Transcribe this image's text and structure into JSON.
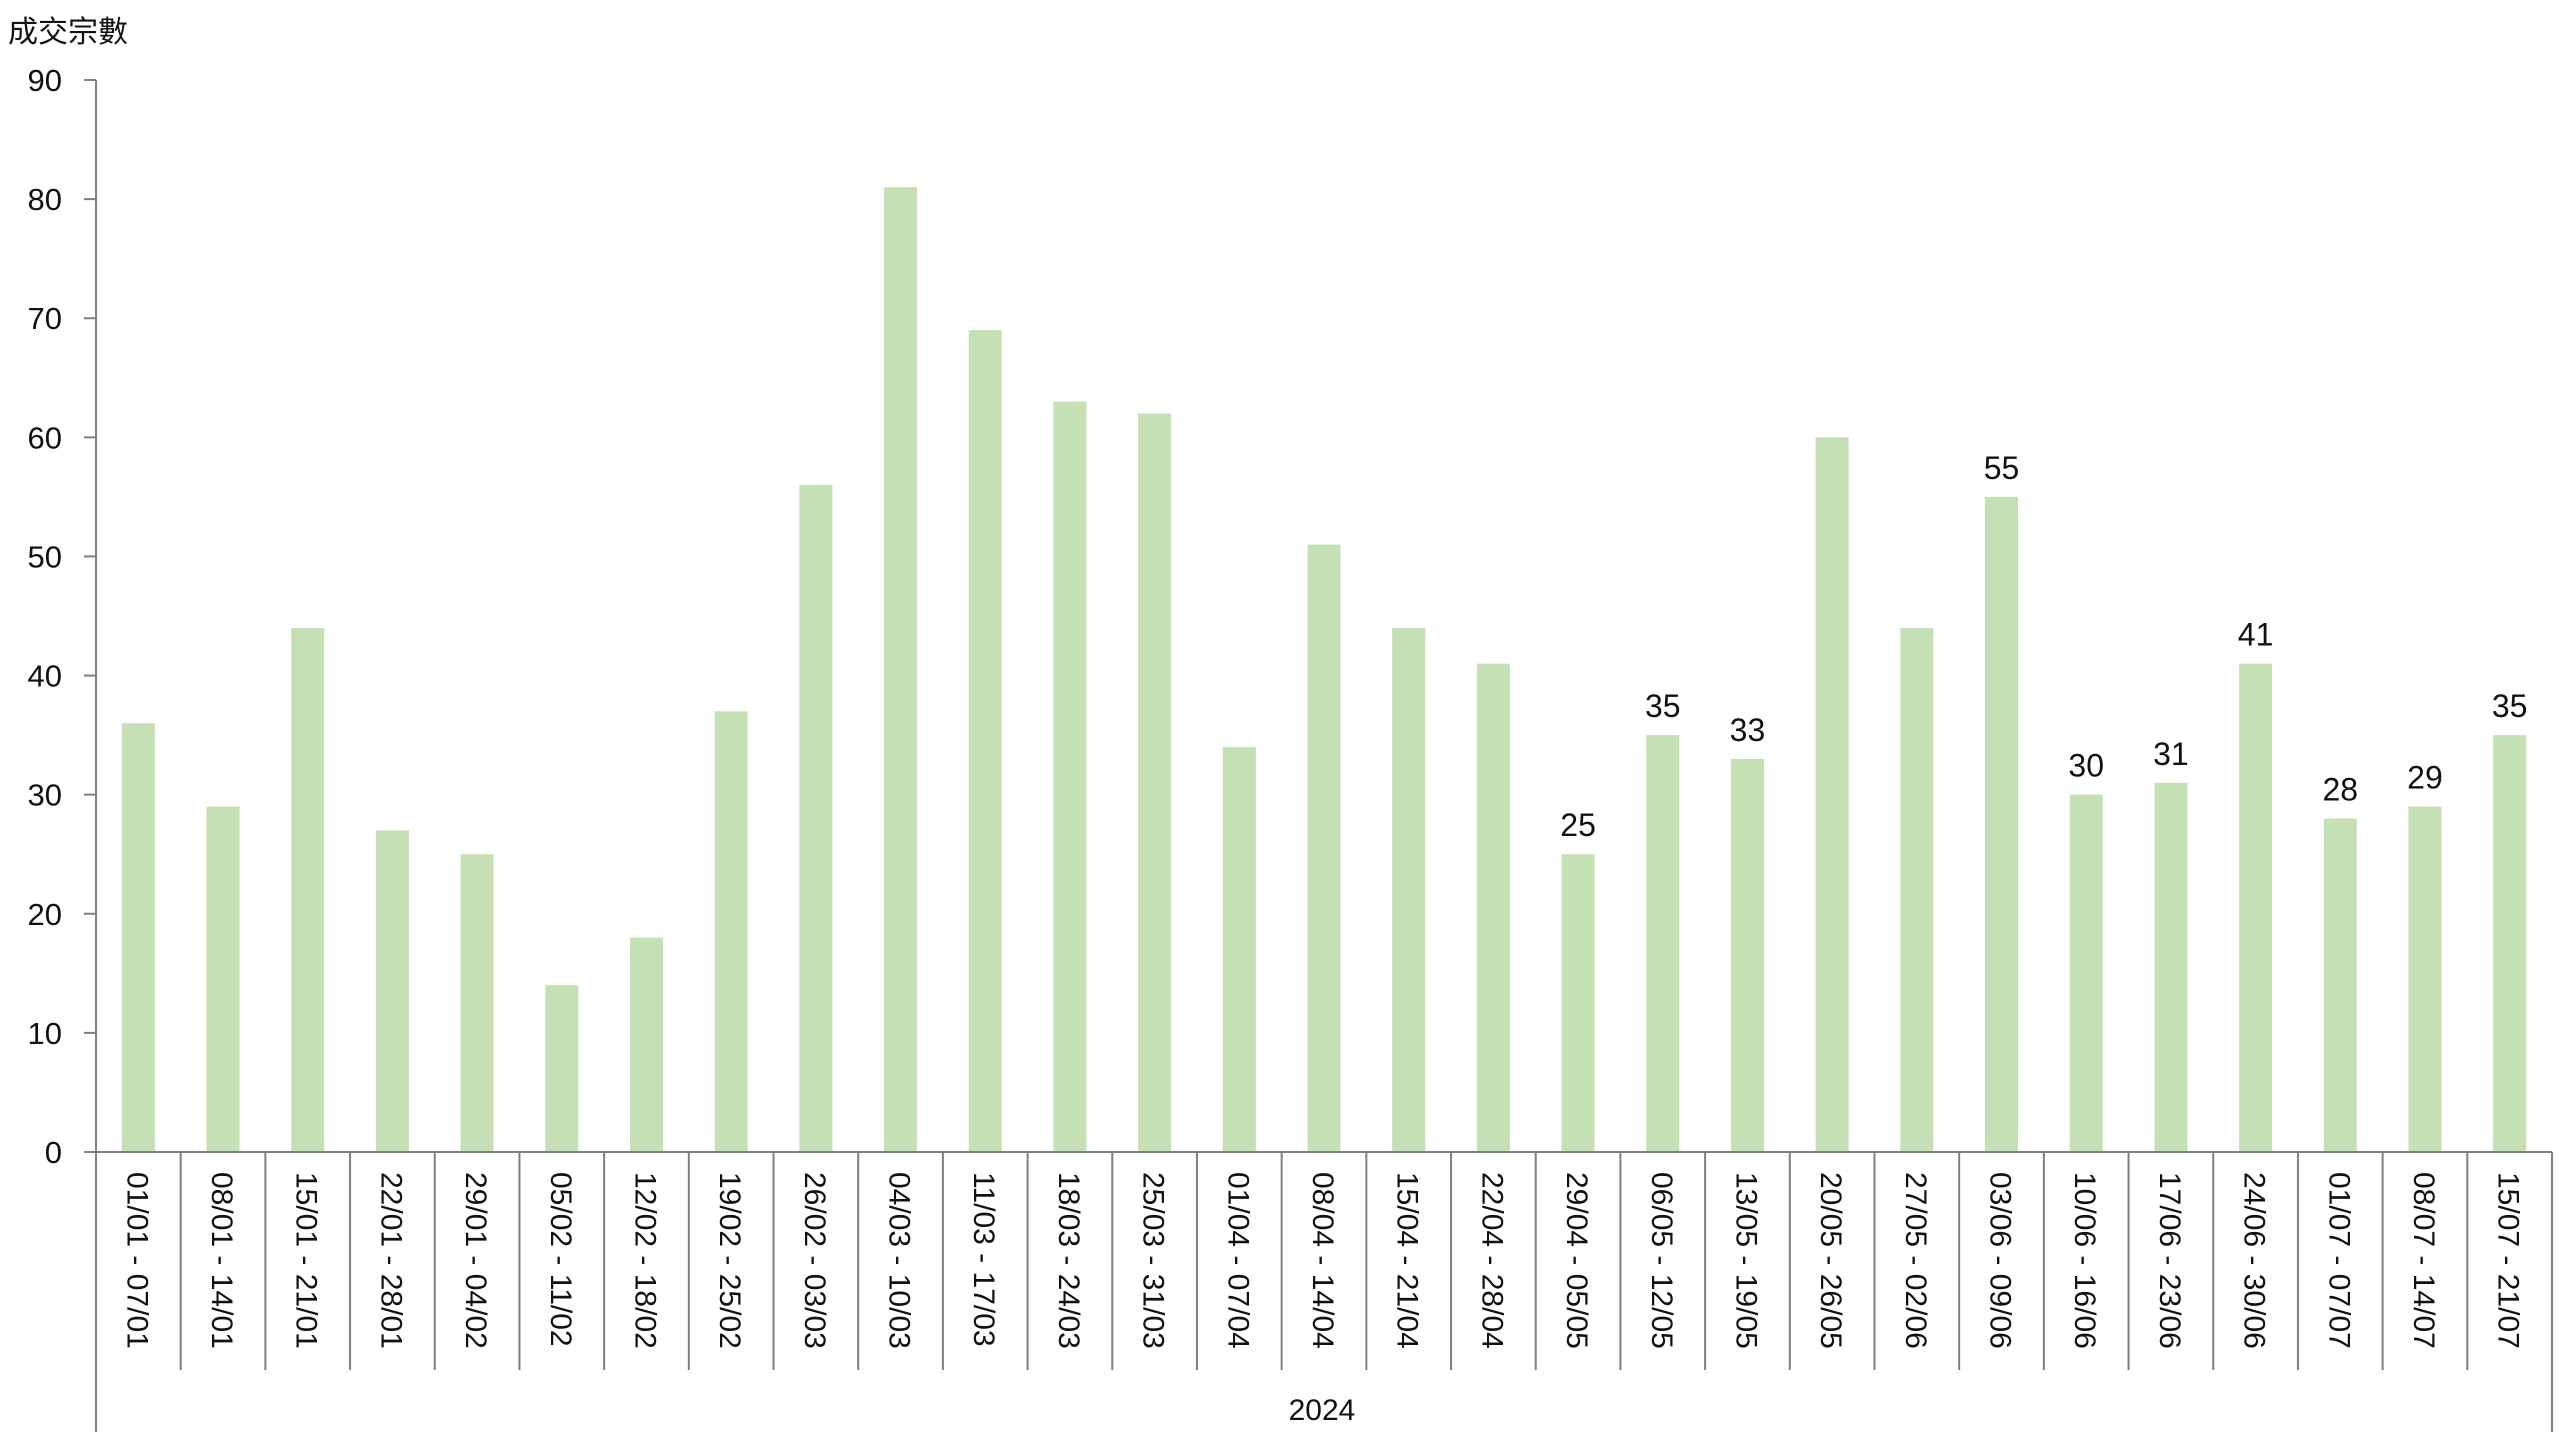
{
  "chart_data": {
    "type": "bar",
    "ylabel": "成交宗數",
    "xlabel": "2024",
    "ylim": [
      0,
      90
    ],
    "yticks": [
      0,
      10,
      20,
      30,
      40,
      50,
      60,
      70,
      80,
      90
    ],
    "grid": false,
    "bar_color": "#c5e0b4",
    "axis_color": "#7f7f7f",
    "categories": [
      "01/01 - 07/01",
      "08/01 - 14/01",
      "15/01 - 21/01",
      "22/01 - 28/01",
      "29/01 - 04/02",
      "05/02 - 11/02",
      "12/02 - 18/02",
      "19/02 - 25/02",
      "26/02 - 03/03",
      "04/03 - 10/03",
      "11/03 - 17/03",
      "18/03 - 24/03",
      "25/03 - 31/03",
      "01/04 - 07/04",
      "08/04 - 14/04",
      "15/04 - 21/04",
      "22/04 - 28/04",
      "29/04 - 05/05",
      "06/05 - 12/05",
      "13/05 - 19/05",
      "20/05 - 26/05",
      "27/05 - 02/06",
      "03/06 - 09/06",
      "10/06 - 16/06",
      "17/06 - 23/06",
      "24/06 - 30/06",
      "01/07 - 07/07",
      "08/07 - 14/07",
      "15/07 - 21/07"
    ],
    "values": [
      36,
      29,
      44,
      27,
      25,
      14,
      18,
      37,
      56,
      81,
      69,
      63,
      62,
      34,
      51,
      44,
      41,
      25,
      35,
      33,
      60,
      44,
      55,
      30,
      31,
      41,
      28,
      29,
      35
    ],
    "data_labels": [
      "",
      "",
      "",
      "",
      "",
      "",
      "",
      "",
      "",
      "",
      "",
      "",
      "",
      "",
      "",
      "",
      "",
      "25",
      "35",
      "33",
      "",
      "",
      "55",
      "30",
      "31",
      "41",
      "28",
      "29",
      "35"
    ]
  }
}
